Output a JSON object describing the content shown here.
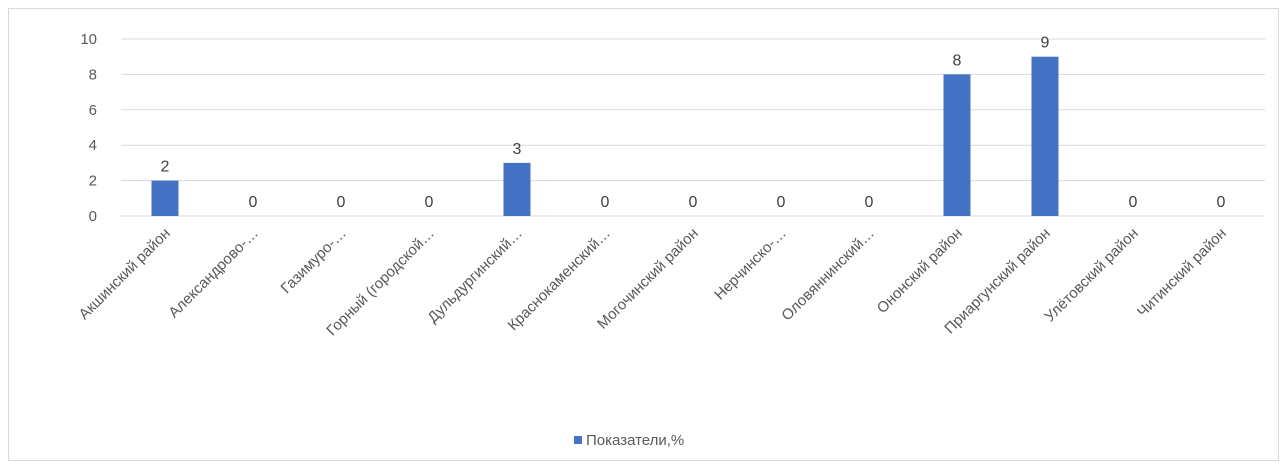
{
  "chart_data": {
    "type": "bar",
    "categories": [
      "Акшинский район",
      "Александрово-…",
      "Газимуро-…",
      "Горный (городской…",
      "Дульдургинский…",
      "Краснокаменский…",
      "Могочинский район",
      "Нерчинско-…",
      "Оловяннинский…",
      "Ононский район",
      "Приаргунский район",
      "Улётовский район",
      "Читинский район"
    ],
    "series": [
      {
        "name": "Показатели,%",
        "values": [
          2,
          0,
          0,
          0,
          3,
          0,
          0,
          0,
          0,
          8,
          9,
          0,
          0
        ]
      }
    ],
    "data_labels": [
      "2",
      "0",
      "0",
      "0",
      "3",
      "0",
      "0",
      "0",
      "0",
      "8",
      "9",
      "0",
      "0"
    ],
    "y_ticks": [
      0,
      2,
      4,
      6,
      8,
      10
    ],
    "ylim": [
      0,
      10
    ],
    "grid": true,
    "legend_position": "bottom",
    "colors": {
      "bar": "#4472c4",
      "grid": "#d9d9d9",
      "text": "#595959"
    }
  }
}
